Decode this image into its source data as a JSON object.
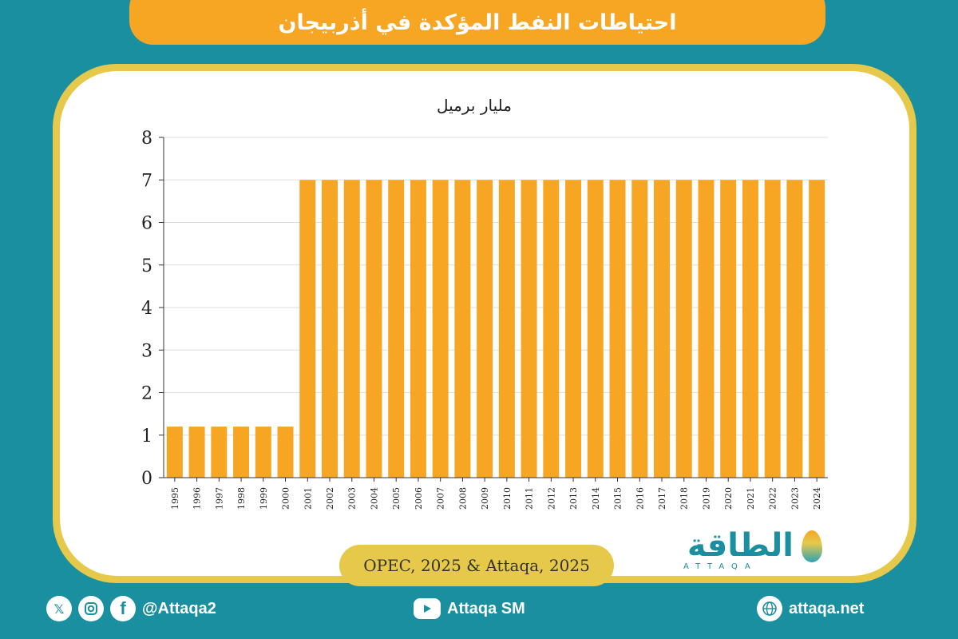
{
  "title": "احتياطات النفط المؤكدة في أذربيجان",
  "source": "OPEC, 2025 & Attaqa, 2025",
  "logo": {
    "arabic": "الطاقة",
    "latin": "ATTAQA"
  },
  "footer": {
    "social_handle": "@Attaqa2",
    "youtube": "Attaqa SM",
    "website": "attaqa.net"
  },
  "icons": [
    "x-icon",
    "instagram-icon",
    "facebook-icon",
    "youtube-icon",
    "globe-icon"
  ],
  "colors": {
    "bar": "#f6a623",
    "background": "#1a8fa0",
    "accent": "#e6c94a"
  },
  "chart_data": {
    "type": "bar",
    "title": "",
    "ylabel": "مليار برميل",
    "xlabel": "",
    "ylim": [
      0,
      8
    ],
    "yticks": [
      0,
      1,
      2,
      3,
      4,
      5,
      6,
      7,
      8
    ],
    "grid": true,
    "categories": [
      "1995",
      "1996",
      "1997",
      "1998",
      "1999",
      "2000",
      "2001",
      "2002",
      "2003",
      "2004",
      "2005",
      "2006",
      "2007",
      "2008",
      "2009",
      "2010",
      "2011",
      "2012",
      "2013",
      "2014",
      "2015",
      "2016",
      "2017",
      "2018",
      "2019",
      "2020",
      "2021",
      "2022",
      "2023",
      "2024"
    ],
    "values": [
      1.2,
      1.2,
      1.2,
      1.2,
      1.2,
      1.2,
      7,
      7,
      7,
      7,
      7,
      7,
      7,
      7,
      7,
      7,
      7,
      7,
      7,
      7,
      7,
      7,
      7,
      7,
      7,
      7,
      7,
      7,
      7,
      7
    ]
  }
}
